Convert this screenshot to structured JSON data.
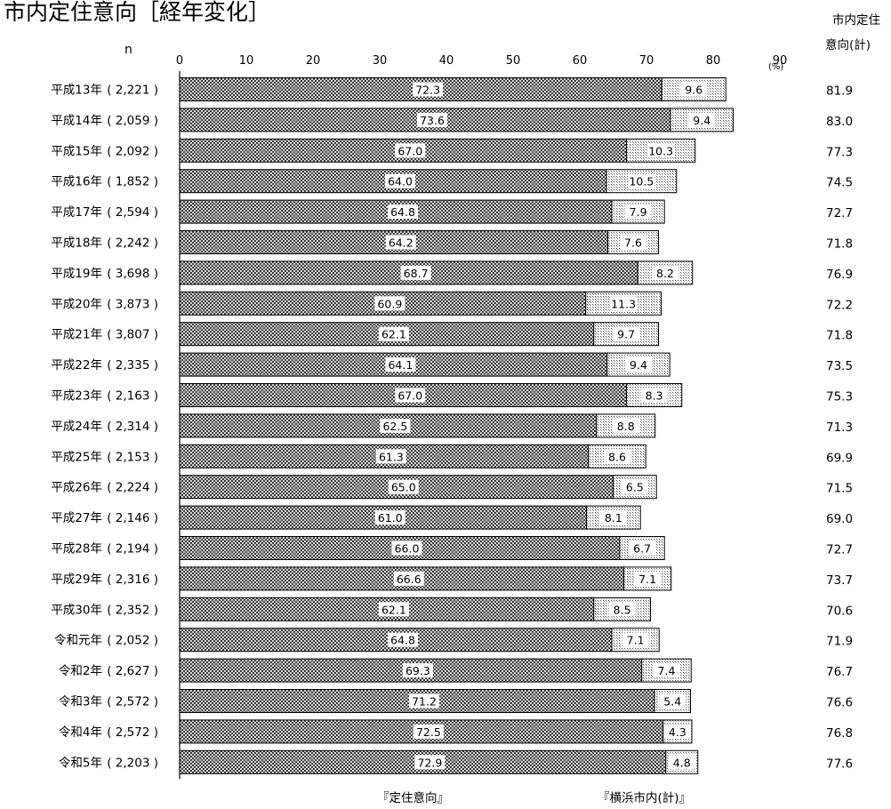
{
  "title": "市内定住意向［経年変化］",
  "total_header": [
    "市内定住",
    "意向(計)"
  ],
  "n_header": "n",
  "unit_label": "(%)",
  "legend": [
    "『定住意向』",
    "『横浜市内(計)』"
  ],
  "colors": {
    "series1_fill": "#8a8a8a",
    "series2_fill": "#f0f0f0",
    "label_bg": "#ffffff",
    "border": "#000000"
  },
  "chart_data": {
    "type": "bar",
    "orientation": "horizontal",
    "stacked": true,
    "xlim": [
      0,
      90
    ],
    "x_ticks": [
      0,
      10,
      20,
      30,
      40,
      50,
      60,
      70,
      80,
      90
    ],
    "grid": false,
    "legend_position": "bottom",
    "categories": [
      "平成13年",
      "平成14年",
      "平成15年",
      "平成16年",
      "平成17年",
      "平成18年",
      "平成19年",
      "平成20年",
      "平成21年",
      "平成22年",
      "平成23年",
      "平成24年",
      "平成25年",
      "平成26年",
      "平成27年",
      "平成28年",
      "平成29年",
      "平成30年",
      "令和元年",
      "令和2年",
      "令和3年",
      "令和4年",
      "令和5年"
    ],
    "n": [
      "2,221",
      "2,059",
      "2,092",
      "1,852",
      "2,594",
      "2,242",
      "3,698",
      "3,873",
      "3,807",
      "2,335",
      "2,163",
      "2,314",
      "2,153",
      "2,224",
      "2,146",
      "2,194",
      "2,316",
      "2,352",
      "2,052",
      "2,627",
      "2,572",
      "2,572",
      "2,203"
    ],
    "series": [
      {
        "name": "『定住意向』",
        "values": [
          72.3,
          73.6,
          67.0,
          64.0,
          64.8,
          64.2,
          68.7,
          60.9,
          62.1,
          64.1,
          67.0,
          62.5,
          61.3,
          65.0,
          61.0,
          66.0,
          66.6,
          62.1,
          64.8,
          69.3,
          71.2,
          72.5,
          72.9
        ]
      },
      {
        "name": "『横浜市内(計)』",
        "values": [
          9.6,
          9.4,
          10.3,
          10.5,
          7.9,
          7.6,
          8.2,
          11.3,
          9.7,
          9.4,
          8.3,
          8.8,
          8.6,
          6.5,
          8.1,
          6.7,
          7.1,
          8.5,
          7.1,
          7.4,
          5.4,
          4.3,
          4.8
        ]
      }
    ],
    "totals": [
      "81.9",
      "83.0",
      "77.3",
      "74.5",
      "72.7",
      "71.8",
      "76.9",
      "72.2",
      "71.8",
      "73.5",
      "75.3",
      "71.3",
      "69.9",
      "71.5",
      "69.0",
      "72.7",
      "73.7",
      "70.6",
      "71.9",
      "76.7",
      "76.6",
      "76.8",
      "77.6"
    ]
  }
}
